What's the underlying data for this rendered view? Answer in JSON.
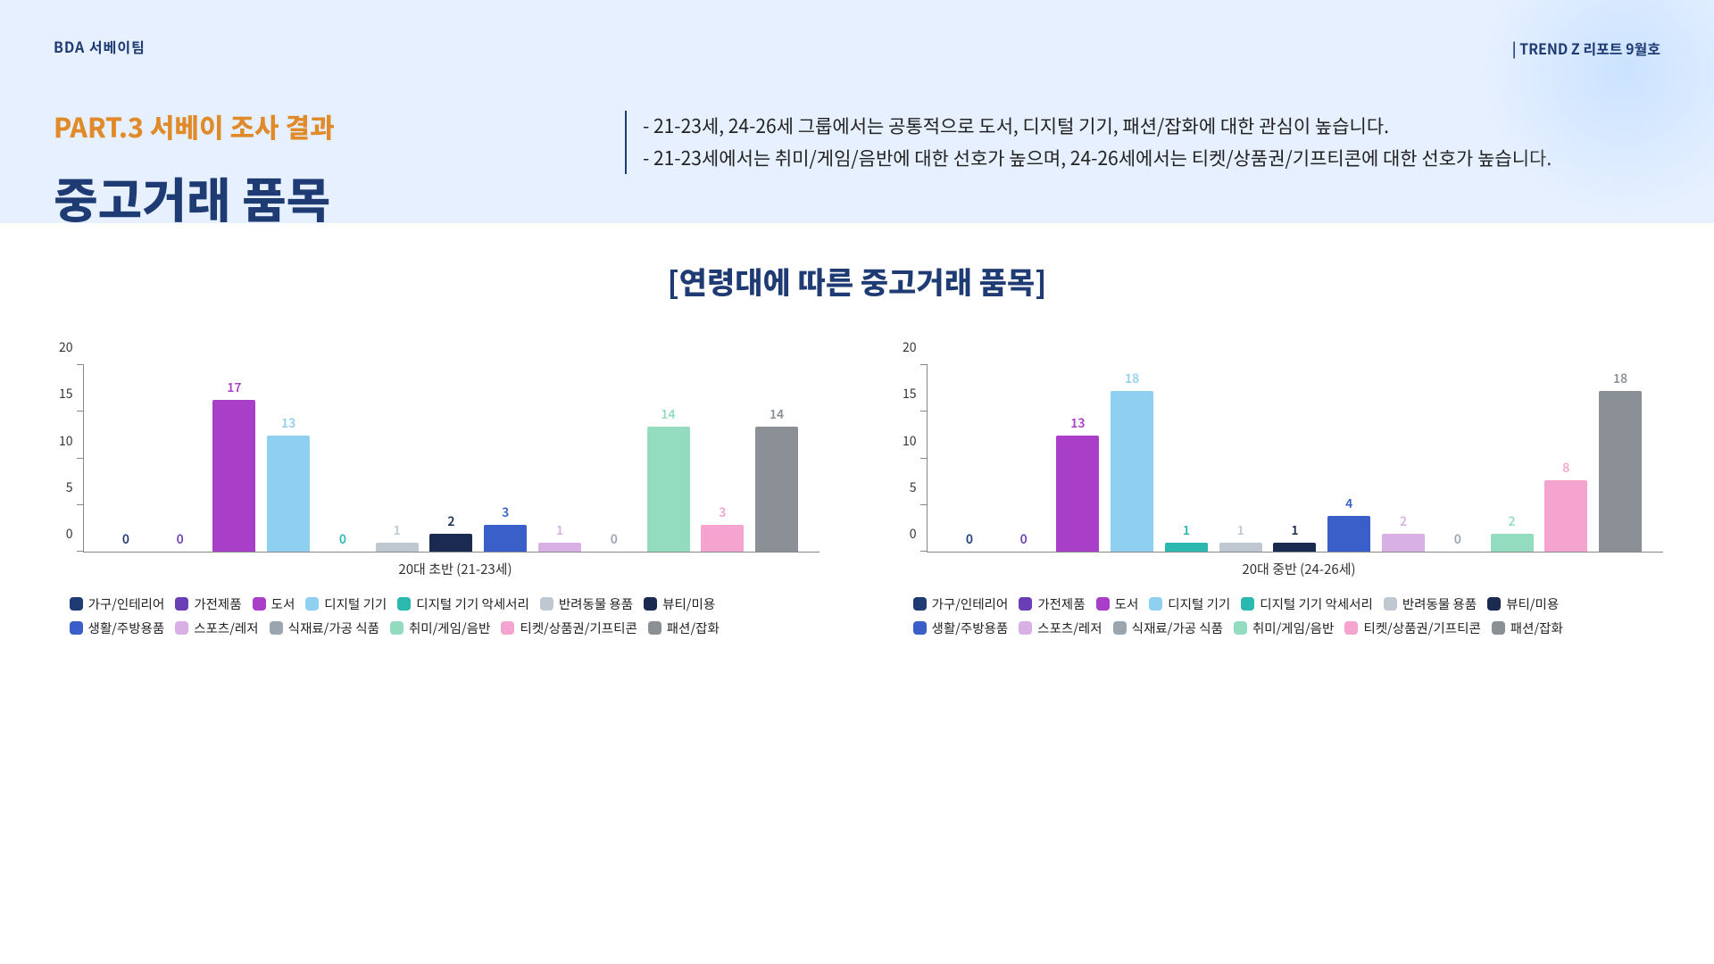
{
  "header": {
    "team": "BDA 서베이팀",
    "report": "| TREND Z 리포트 9월호",
    "part": "PART.3 서베이 조사 결과",
    "title": "중고거래 품목",
    "desc1": "- 21-23세, 24-26세 그룹에서는 공통적으로 도서, 디지털 기기, 패션/잡화에 대한 관심이 높습니다.",
    "desc2": "- 21-23세에서는 취미/게임/음반에 대한 선호가 높으며, 24-26세에서는 티켓/상품권/기프티콘에 대한 선호가 높습니다."
  },
  "chart_section_title": "[연령대에 따른 중고거래 품목]",
  "categories": [
    {
      "label": "가구/인테리어",
      "color": "#1f3b73"
    },
    {
      "label": "가전제품",
      "color": "#6a3fb5"
    },
    {
      "label": "도서",
      "color": "#a93ec9"
    },
    {
      "label": "디지털 기기",
      "color": "#8fd0f0"
    },
    {
      "label": "디지털 기기 악세서리",
      "color": "#2bb8b0"
    },
    {
      "label": "반려동물 용품",
      "color": "#bfc8d0"
    },
    {
      "label": "뷰티/미용",
      "color": "#1a2a50"
    },
    {
      "label": "생활/주방용품",
      "color": "#3a5fc8"
    },
    {
      "label": "스포츠/레저",
      "color": "#d9b0e6"
    },
    {
      "label": "식재료/가공 식품",
      "color": "#9aa5b0"
    },
    {
      "label": "취미/게임/음반",
      "color": "#94dcc0"
    },
    {
      "label": "티켓/상품권/기프티콘",
      "color": "#f4a4cf"
    },
    {
      "label": "패션/잡화",
      "color": "#8b8f96"
    }
  ],
  "charts": [
    {
      "subtitle": "20대 초반 (21-23세)",
      "ymax": 20,
      "ytick_step": 5,
      "values": [
        0,
        0,
        17,
        13,
        0,
        1,
        2,
        3,
        1,
        0,
        14,
        3,
        14
      ]
    },
    {
      "subtitle": "20대 중반 (24-26세)",
      "ymax": 20,
      "ytick_step": 5,
      "values": [
        0,
        0,
        13,
        18,
        1,
        1,
        1,
        4,
        2,
        0,
        2,
        8,
        18
      ]
    }
  ],
  "style": {
    "label_fontsize": 14,
    "value_fontsize": 14
  }
}
